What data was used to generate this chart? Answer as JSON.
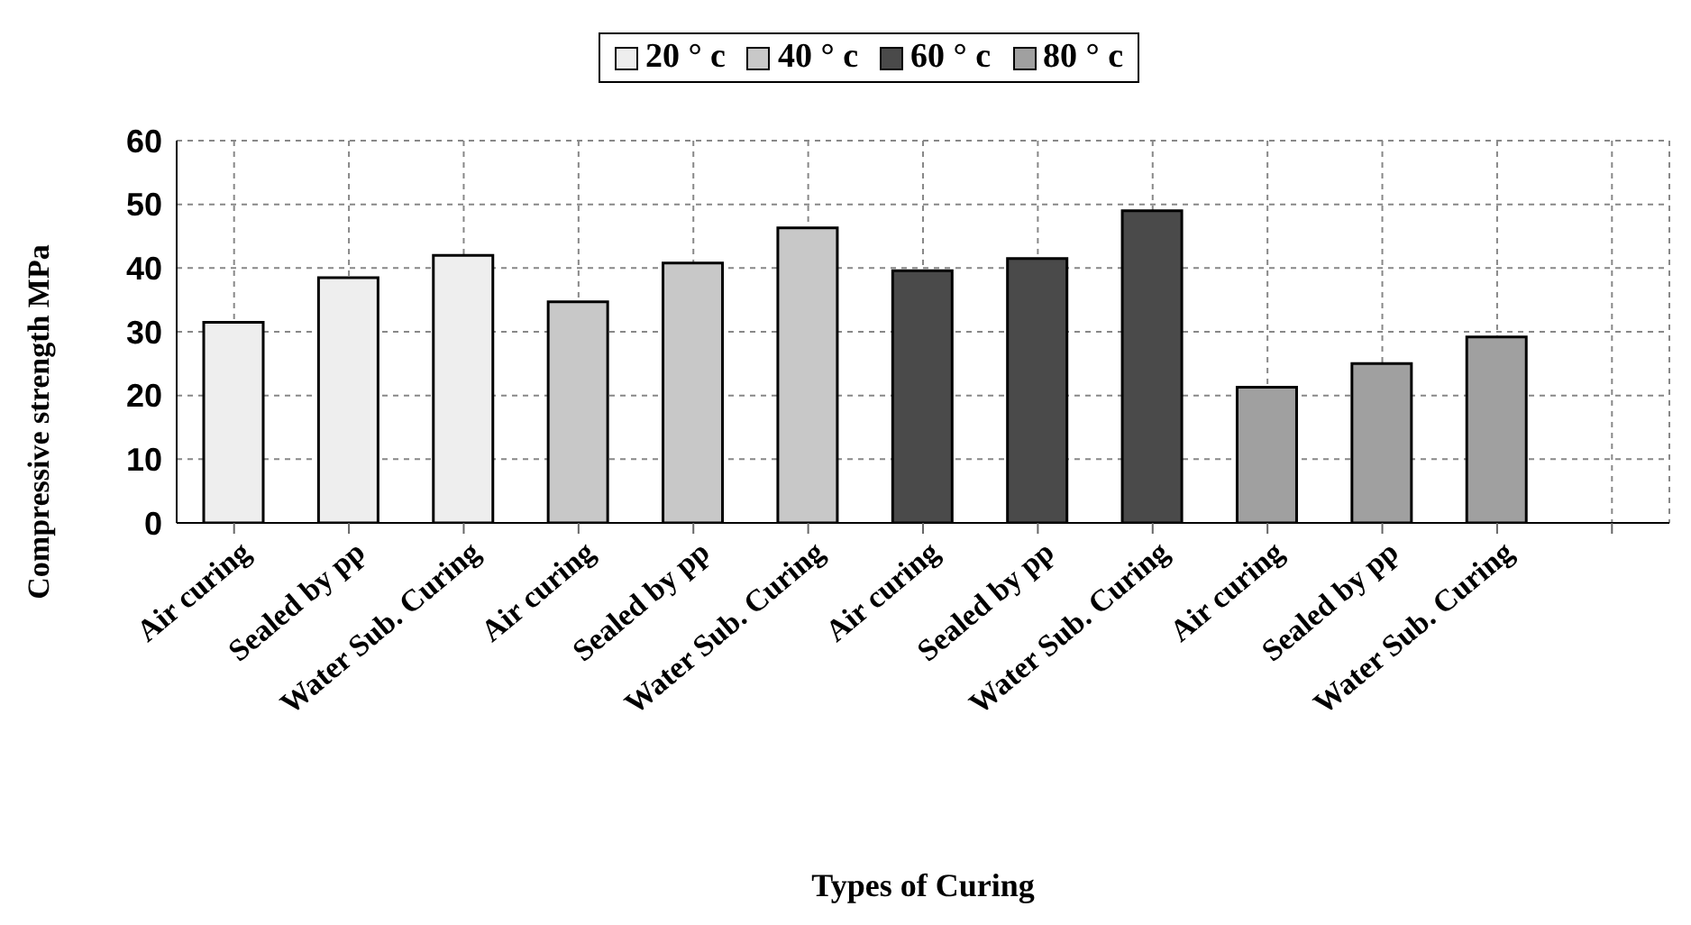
{
  "chart_data": {
    "type": "bar",
    "xlabel": "Types of Curing",
    "ylabel": "Compressive strength MPa",
    "categories": [
      "Air curing",
      "Sealed by pp",
      "Water Sub. Curing",
      "Air curing",
      "Sealed by pp",
      "Water Sub. Curing",
      "Air curing",
      "Sealed by pp",
      "Water Sub. Curing",
      "Air curing",
      "Sealed by pp",
      "Water Sub. Curing",
      null
    ],
    "series": [
      {
        "name": "20 ° c",
        "color": "#eeeeee",
        "values": [
          31.5,
          38.5,
          42,
          null,
          null,
          null,
          null,
          null,
          null,
          null,
          null,
          null,
          null
        ]
      },
      {
        "name": "40 ° c",
        "color": "#c8c8c8",
        "values": [
          null,
          null,
          null,
          34.7,
          40.8,
          46.3,
          null,
          null,
          null,
          null,
          null,
          null,
          null
        ]
      },
      {
        "name": "60 ° c",
        "color": "#4a4a4a",
        "values": [
          null,
          null,
          null,
          null,
          null,
          null,
          39.6,
          41.5,
          49,
          null,
          null,
          null,
          null
        ]
      },
      {
        "name": "80 ° c",
        "color": "#a0a0a0",
        "values": [
          null,
          null,
          null,
          null,
          null,
          null,
          null,
          null,
          null,
          21.3,
          25,
          29.2,
          null
        ]
      }
    ],
    "ylim": [
      0,
      60
    ],
    "yticks": [
      0,
      10,
      20,
      30,
      40,
      50,
      60
    ],
    "grid": true,
    "legend": "top"
  }
}
